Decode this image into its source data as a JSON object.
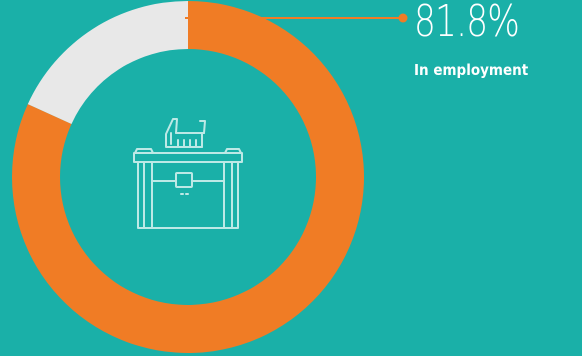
{
  "chart_data": {
    "type": "pie",
    "variant": "donut",
    "segments": [
      {
        "label": "In employment",
        "value": 81.8,
        "color": "#f07c25"
      },
      {
        "label": "",
        "value": 18.2,
        "color": "#e8e8e8"
      }
    ],
    "value_label": "81.8%",
    "caption": "In employment",
    "icon": "briefcase-icon"
  },
  "colors": {
    "background": "#1ab0a8",
    "accent": "#f07c25",
    "remainder": "#e8e8e8",
    "icon_stroke": "#bde9e6"
  }
}
